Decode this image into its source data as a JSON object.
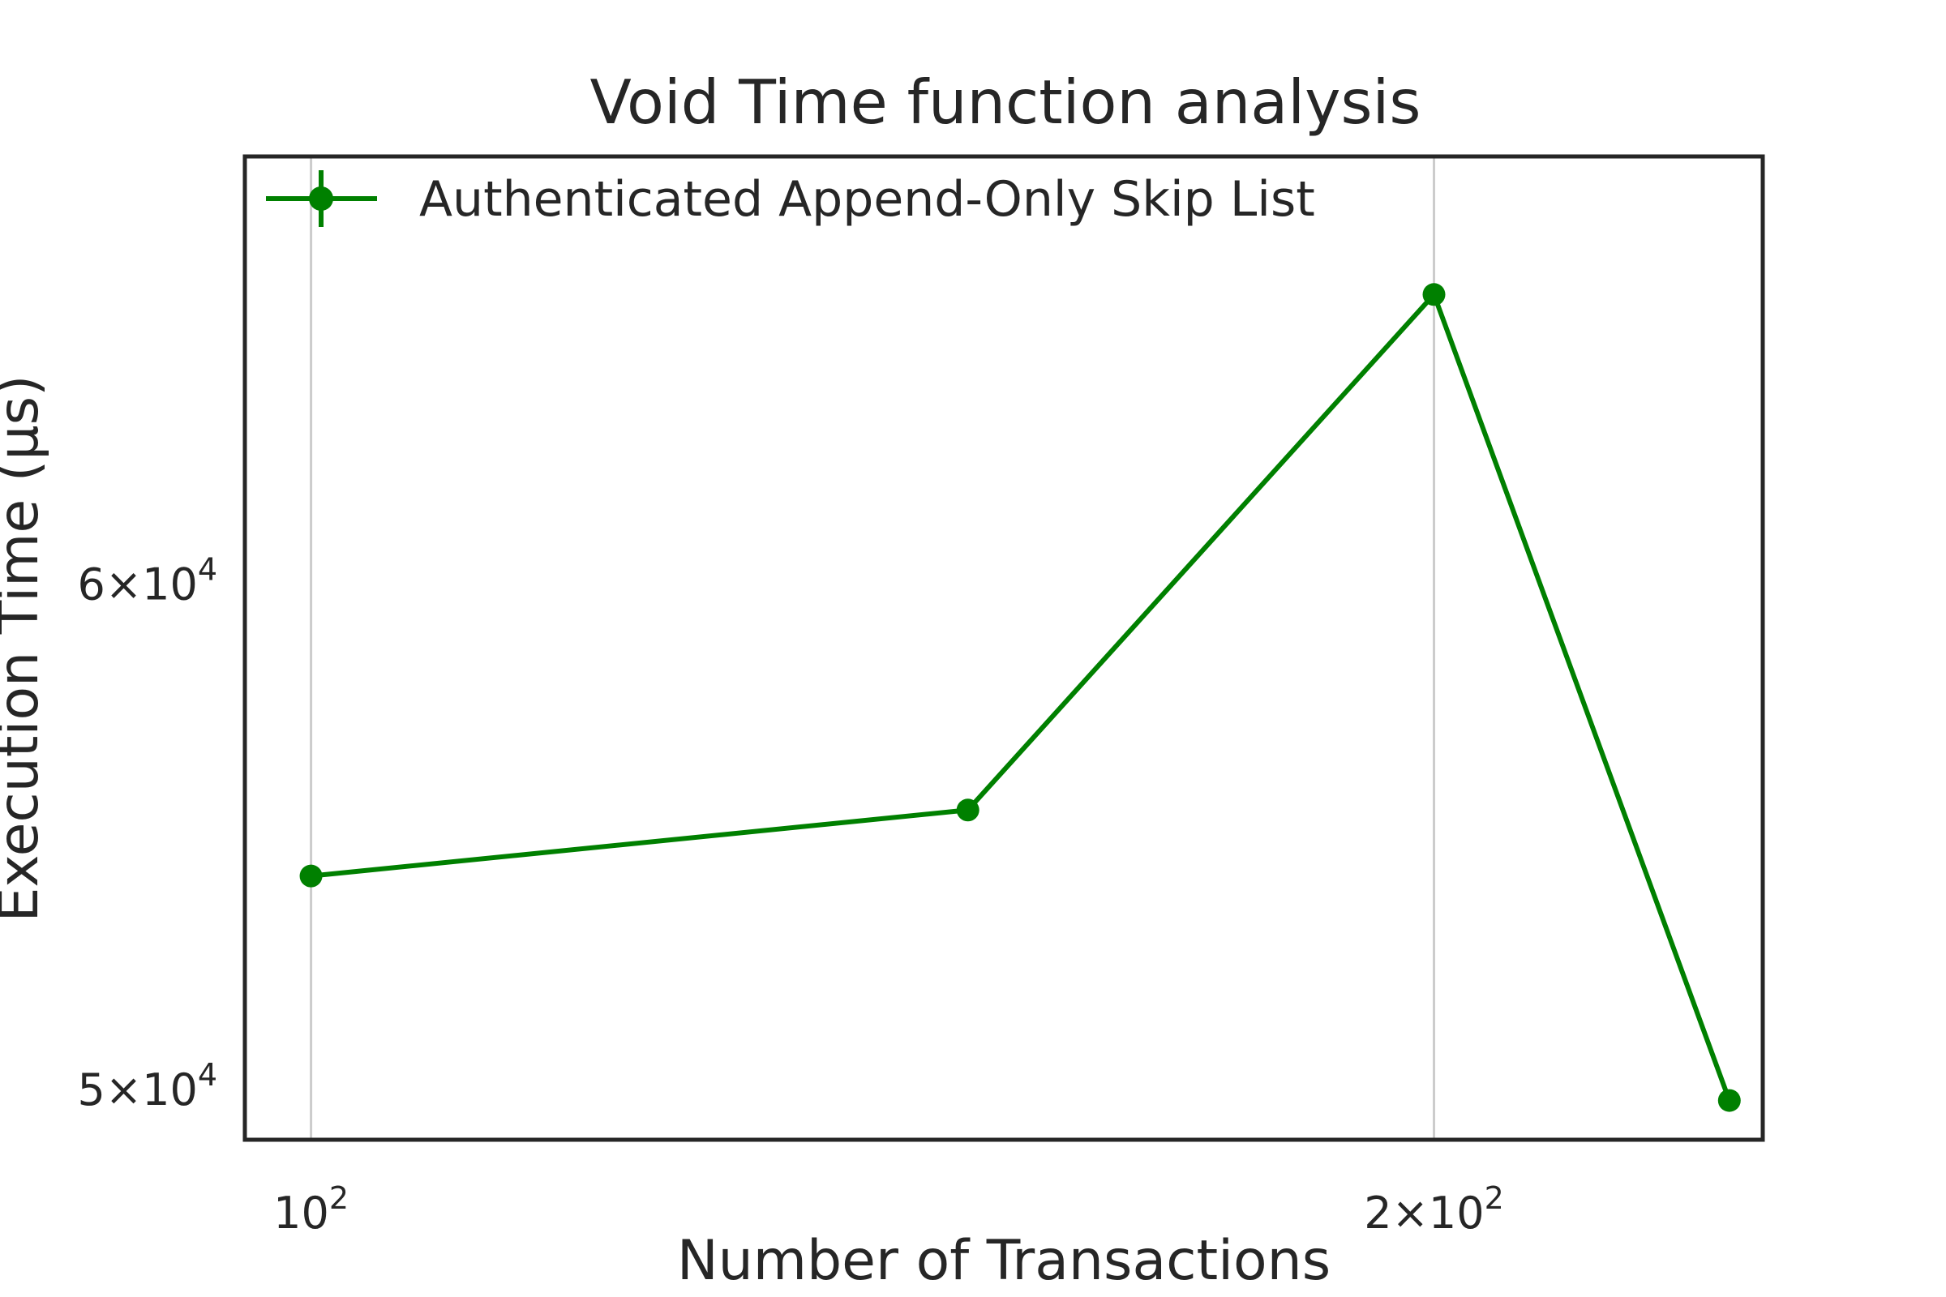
{
  "chart_data": {
    "type": "line",
    "title": "Void Time function analysis",
    "xlabel": "Number of Transactions",
    "ylabel": "Execution Time (μs)",
    "xscale": "log",
    "yscale": "log",
    "grid": true,
    "legend": "top-left",
    "xlim": [
      96,
      245
    ],
    "ylim": [
      49100,
      70000
    ],
    "x_ticks": [
      {
        "value": 100,
        "label": "10",
        "exp": "2"
      },
      {
        "value": 200,
        "label": "2×10",
        "exp": "2"
      }
    ],
    "y_ticks": [
      {
        "value": 50000,
        "label": "5×10",
        "exp": "4"
      },
      {
        "value": 60000,
        "label": "6×10",
        "exp": "4"
      }
    ],
    "series": [
      {
        "name": "Authenticated Append-Only Skip List",
        "color": "#008000",
        "x": [
          100,
          150,
          200,
          240
        ],
        "y": [
          54000,
          55300,
          66600,
          49800
        ]
      }
    ]
  }
}
